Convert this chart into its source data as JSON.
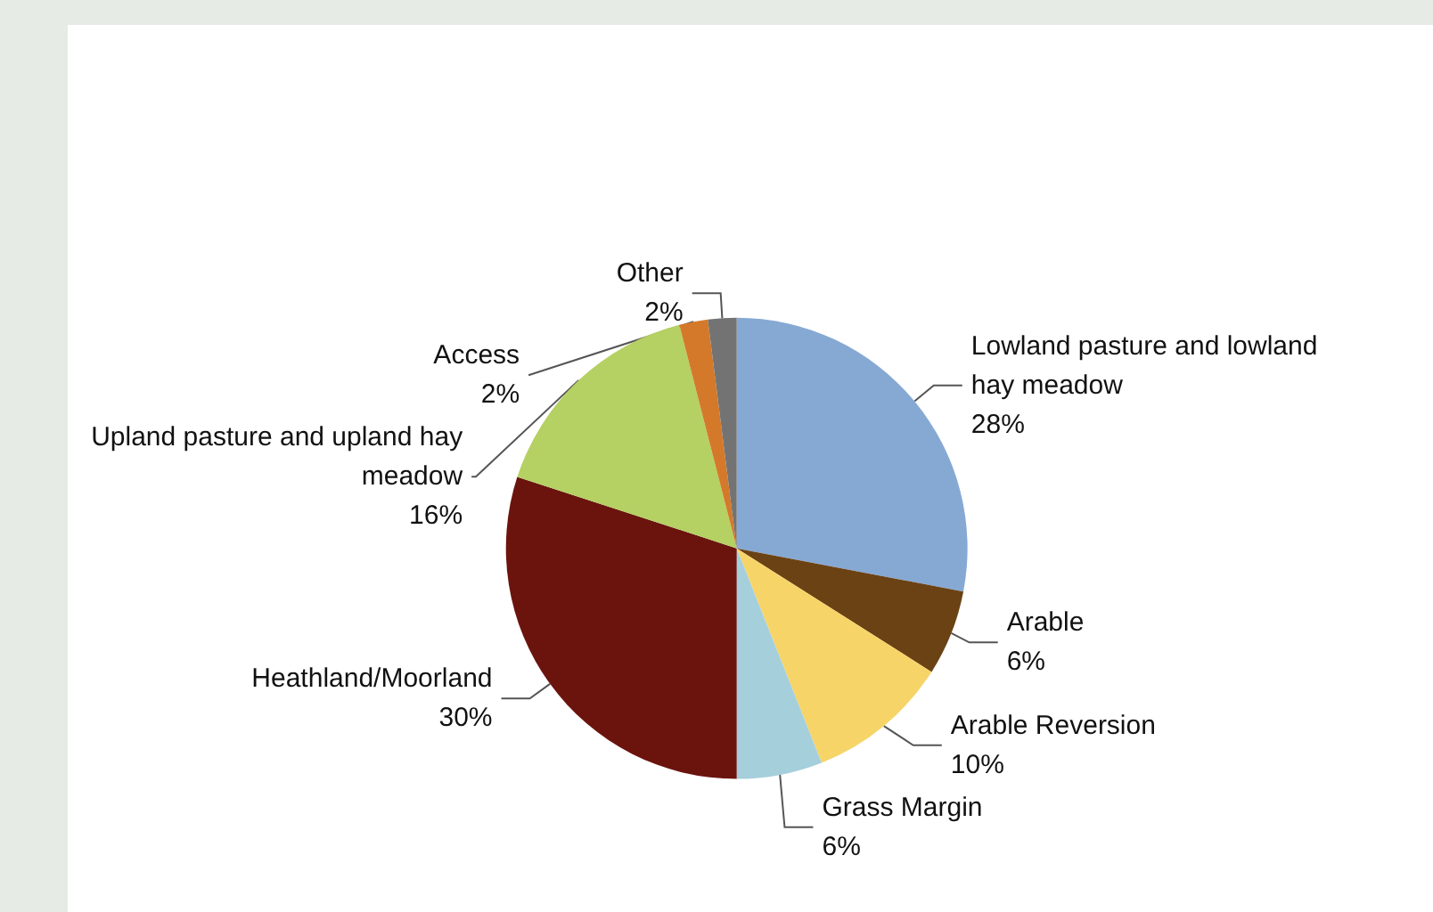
{
  "chart_data": {
    "type": "pie",
    "categories": [
      "Lowland pasture and lowland hay meadow",
      "Arable",
      "Arable Reversion",
      "Grass Margin",
      "Heathland/Moorland",
      "Upland pasture and upland hay meadow",
      "Access",
      "Other"
    ],
    "values": [
      28,
      6,
      10,
      6,
      30,
      16,
      2,
      2
    ],
    "value_labels": [
      "28%",
      "6%",
      "10%",
      "6%",
      "30%",
      "16%",
      "2%",
      "2%"
    ],
    "colors": [
      "#86a9d4",
      "#6b4214",
      "#f7d468",
      "#a6cfdc",
      "#6b140e",
      "#b5d063",
      "#d4792a",
      "#737373"
    ]
  }
}
